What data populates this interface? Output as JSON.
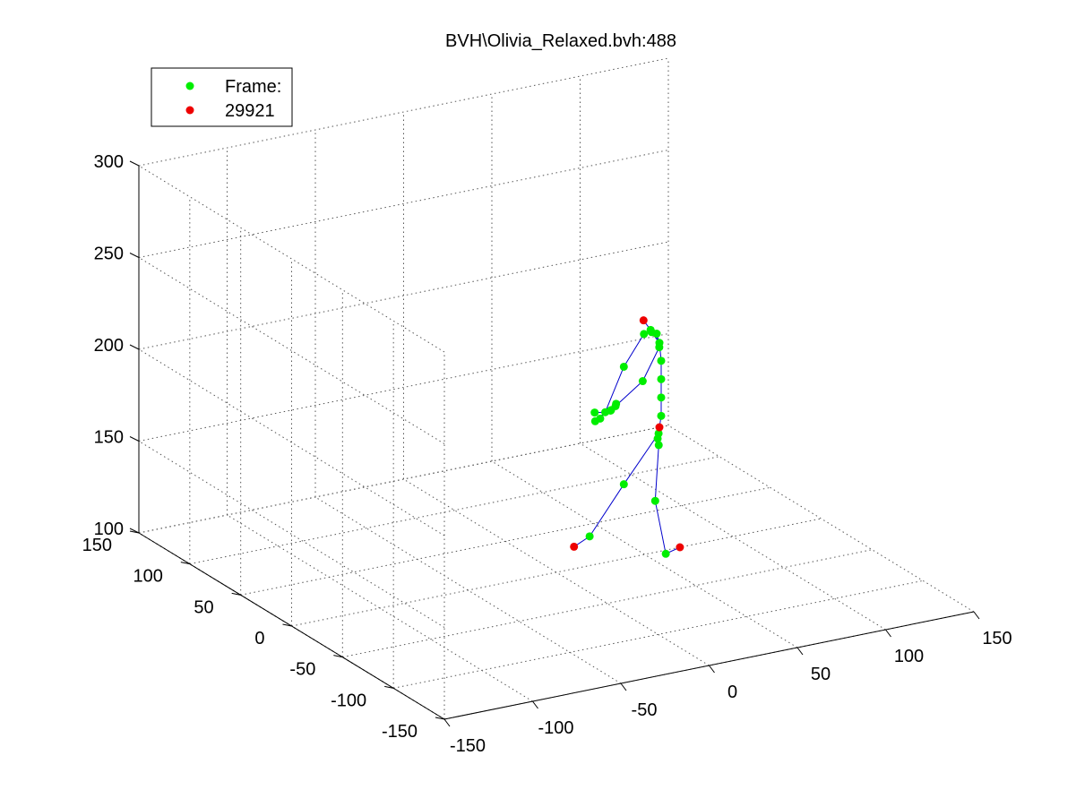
{
  "colors": {
    "background": "#ffffff",
    "axis": "#000000",
    "grid": "#555555",
    "bone": "#0000cc",
    "joint": "#00ee00",
    "end_site": "#ee0000"
  },
  "chart_data": {
    "type": "scatter",
    "projection": "3d",
    "title": "BVH\\Olivia_Relaxed.bvh:488",
    "grid": true,
    "legend": {
      "placement": "top-left",
      "entries": [
        {
          "label": "Frame:",
          "color": "#00ee00",
          "marker": "dot"
        },
        {
          "label": "29921",
          "color": "#ee0000",
          "marker": "dot"
        }
      ]
    },
    "x_axis": {
      "range": [
        -150,
        150
      ],
      "ticks": [
        -150,
        -100,
        -50,
        0,
        50,
        100,
        150
      ],
      "tick_labels": [
        "-150",
        "-100",
        "-50",
        "0",
        "50",
        "100",
        "150"
      ]
    },
    "y_axis": {
      "range": [
        -150,
        150
      ],
      "ticks": [
        -150,
        -100,
        -50,
        0,
        50,
        100,
        150
      ],
      "tick_labels": [
        "-150",
        "-100",
        "-50",
        "0",
        "50",
        "100",
        "150"
      ]
    },
    "z_axis": {
      "range": [
        100,
        300
      ],
      "ticks": [
        100,
        150,
        200,
        250,
        300
      ],
      "tick_labels": [
        "100",
        "150",
        "200",
        "250",
        "300"
      ]
    },
    "joints": [
      {
        "id": "hips",
        "x": 62,
        "y": 8,
        "z": 158
      },
      {
        "id": "spine",
        "x": 64,
        "y": 8,
        "z": 170
      },
      {
        "id": "spine1",
        "x": 64,
        "y": 8,
        "z": 180
      },
      {
        "id": "spine2",
        "x": 64,
        "y": 8,
        "z": 190
      },
      {
        "id": "spine3",
        "x": 64,
        "y": 8,
        "z": 200
      },
      {
        "id": "neck",
        "x": 63,
        "y": 8,
        "z": 210
      },
      {
        "id": "head",
        "x": 58,
        "y": 8,
        "z": 218
      },
      {
        "id": "head_end",
        "x": 54,
        "y": 8,
        "z": 224,
        "end": true
      },
      {
        "id": "l_collar",
        "x": 58,
        "y": 2,
        "z": 218
      },
      {
        "id": "l_shoulder",
        "x": 56,
        "y": -4,
        "z": 213
      },
      {
        "id": "l_elbow",
        "x": 42,
        "y": -12,
        "z": 200
      },
      {
        "id": "l_wrist",
        "x": 22,
        "y": -20,
        "z": 193
      },
      {
        "id": "l_hand1",
        "x": 20,
        "y": -24,
        "z": 196
      },
      {
        "id": "l_hand2",
        "x": 18,
        "y": -22,
        "z": 192
      },
      {
        "id": "l_hand3",
        "x": 16,
        "y": -26,
        "z": 194
      },
      {
        "id": "r_collar",
        "x": 62,
        "y": 14,
        "z": 214
      },
      {
        "id": "r_shoulder",
        "x": 60,
        "y": 18,
        "z": 212
      },
      {
        "id": "r_elbow",
        "x": 44,
        "y": 10,
        "z": 200
      },
      {
        "id": "r_wrist",
        "x": 30,
        "y": 4,
        "z": 180
      },
      {
        "id": "r_hand1",
        "x": 26,
        "y": 2,
        "z": 178
      },
      {
        "id": "r_hand2",
        "x": 24,
        "y": 4,
        "z": 181
      },
      {
        "id": "r_hand3",
        "x": 22,
        "y": 0,
        "z": 178
      },
      {
        "id": "l_hip",
        "x": 66,
        "y": 14,
        "z": 158
      },
      {
        "id": "l_knee",
        "x": 44,
        "y": 10,
        "z": 136
      },
      {
        "id": "l_ankle",
        "x": 20,
        "y": 2,
        "z": 115
      },
      {
        "id": "l_toe",
        "x": 10,
        "y": 0,
        "z": 112,
        "end": true
      },
      {
        "id": "r_hip",
        "x": 58,
        "y": 0,
        "z": 158
      },
      {
        "id": "r_knee",
        "x": 56,
        "y": 0,
        "z": 128
      },
      {
        "id": "r_ankle",
        "x": 62,
        "y": 0,
        "z": 98
      },
      {
        "id": "r_toe",
        "x": 70,
        "y": 0,
        "z": 100,
        "end": true
      },
      {
        "id": "hips_end",
        "x": 63,
        "y": 8,
        "z": 164,
        "end": true
      }
    ],
    "bones": [
      [
        "hips",
        "spine"
      ],
      [
        "spine",
        "spine1"
      ],
      [
        "spine1",
        "spine2"
      ],
      [
        "spine2",
        "spine3"
      ],
      [
        "spine3",
        "neck"
      ],
      [
        "neck",
        "head"
      ],
      [
        "head",
        "head_end"
      ],
      [
        "neck",
        "l_collar"
      ],
      [
        "l_collar",
        "l_shoulder"
      ],
      [
        "l_shoulder",
        "l_elbow"
      ],
      [
        "l_elbow",
        "l_wrist"
      ],
      [
        "l_wrist",
        "l_hand1"
      ],
      [
        "l_wrist",
        "l_hand2"
      ],
      [
        "l_wrist",
        "l_hand3"
      ],
      [
        "neck",
        "r_collar"
      ],
      [
        "r_collar",
        "r_shoulder"
      ],
      [
        "r_shoulder",
        "r_elbow"
      ],
      [
        "r_elbow",
        "r_wrist"
      ],
      [
        "r_wrist",
        "r_hand1"
      ],
      [
        "r_wrist",
        "r_hand2"
      ],
      [
        "r_wrist",
        "r_hand3"
      ],
      [
        "hips",
        "l_hip"
      ],
      [
        "l_hip",
        "l_knee"
      ],
      [
        "l_knee",
        "l_ankle"
      ],
      [
        "l_ankle",
        "l_toe"
      ],
      [
        "hips",
        "r_hip"
      ],
      [
        "r_hip",
        "r_knee"
      ],
      [
        "r_knee",
        "r_ankle"
      ],
      [
        "r_ankle",
        "r_toe"
      ],
      [
        "hips",
        "hips_end"
      ]
    ]
  }
}
